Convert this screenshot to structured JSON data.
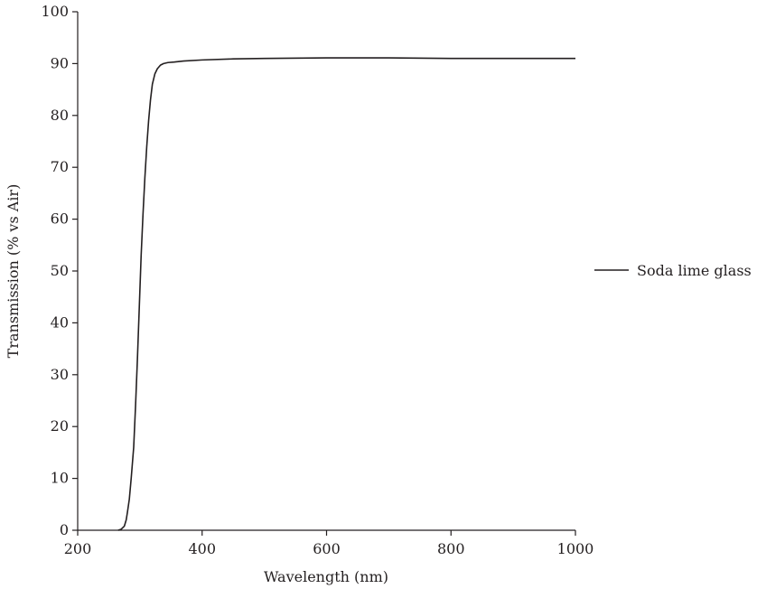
{
  "chart_data": {
    "type": "line",
    "title": "",
    "xlabel": "Wavelength (nm)",
    "ylabel": "Transmission (% vs Air)",
    "xlim": [
      200,
      1000
    ],
    "ylim": [
      0,
      100
    ],
    "xticks": [
      200,
      400,
      600,
      800,
      1000
    ],
    "yticks": [
      0,
      10,
      20,
      30,
      40,
      50,
      60,
      70,
      80,
      90,
      100
    ],
    "xtick_labels": [
      "200",
      "400",
      "600",
      "800",
      "1000"
    ],
    "ytick_labels": [
      "0",
      "10",
      "20",
      "30",
      "40",
      "50",
      "60",
      "70",
      "80",
      "90",
      "100"
    ],
    "grid": false,
    "legend_position": "right",
    "series": [
      {
        "name": "Soda lime glass",
        "color": "#231f20",
        "x": [
          265,
          270,
          275,
          278,
          280,
          283,
          286,
          290,
          293,
          296,
          299,
          302,
          305,
          308,
          311,
          314,
          317,
          320,
          324,
          328,
          333,
          338,
          345,
          355,
          370,
          400,
          450,
          500,
          600,
          700,
          800,
          900,
          1000
        ],
        "y": [
          0,
          0.2,
          0.8,
          2,
          3.5,
          6,
          10,
          16,
          24,
          33,
          43,
          53,
          61,
          68,
          74,
          79,
          83,
          86,
          88,
          89,
          89.7,
          90,
          90.2,
          90.3,
          90.5,
          90.7,
          90.9,
          91,
          91.1,
          91.1,
          91,
          91,
          91
        ]
      }
    ]
  }
}
